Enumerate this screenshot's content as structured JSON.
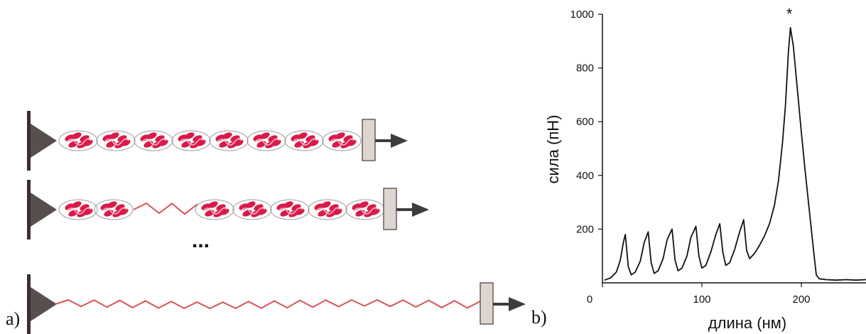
{
  "panels": {
    "a_label": "a)",
    "b_label": "b)"
  },
  "diagram": {
    "rows": [
      {
        "folded_domains": 8,
        "unfolded_domains": 0
      },
      {
        "folded_domains": 7,
        "unfolded_domains": 1
      },
      {
        "folded_domains": 0,
        "unfolded_domains": 8
      }
    ],
    "ellipsis": "...",
    "colors": {
      "domain": "#d81b4a",
      "unfolded_chain": "#d9535a",
      "tip": "#3a2f2f",
      "arrow": "#3d3d3d"
    }
  },
  "chart_data": {
    "type": "line",
    "xlabel": "длина (нм)",
    "ylabel": "сила (пН)",
    "xlim": [
      0,
      265
    ],
    "ylim": [
      0,
      1000
    ],
    "xticks": [
      0,
      100,
      200
    ],
    "yticks": [
      200,
      400,
      600,
      800,
      1000
    ],
    "annotation": {
      "text": "*",
      "x": 188,
      "y": 960
    },
    "series": [
      {
        "color": "#111111",
        "points": [
          [
            2,
            10
          ],
          [
            8,
            18
          ],
          [
            14,
            40
          ],
          [
            18,
            85
          ],
          [
            21,
            150
          ],
          [
            23,
            180
          ],
          [
            26,
            60
          ],
          [
            29,
            30
          ],
          [
            33,
            40
          ],
          [
            38,
            80
          ],
          [
            42,
            150
          ],
          [
            46,
            190
          ],
          [
            49,
            75
          ],
          [
            52,
            35
          ],
          [
            56,
            45
          ],
          [
            61,
            90
          ],
          [
            65,
            160
          ],
          [
            70,
            200
          ],
          [
            73,
            85
          ],
          [
            76,
            45
          ],
          [
            80,
            55
          ],
          [
            85,
            100
          ],
          [
            89,
            170
          ],
          [
            94,
            210
          ],
          [
            97,
            100
          ],
          [
            100,
            55
          ],
          [
            104,
            65
          ],
          [
            109,
            115
          ],
          [
            114,
            180
          ],
          [
            118,
            220
          ],
          [
            121,
            115
          ],
          [
            124,
            65
          ],
          [
            128,
            75
          ],
          [
            133,
            125
          ],
          [
            138,
            190
          ],
          [
            142,
            235
          ],
          [
            145,
            120
          ],
          [
            148,
            90
          ],
          [
            153,
            110
          ],
          [
            158,
            140
          ],
          [
            163,
            175
          ],
          [
            168,
            220
          ],
          [
            173,
            290
          ],
          [
            177,
            380
          ],
          [
            181,
            520
          ],
          [
            184,
            660
          ],
          [
            187,
            860
          ],
          [
            189,
            950
          ],
          [
            192,
            880
          ],
          [
            196,
            720
          ],
          [
            200,
            560
          ],
          [
            204,
            410
          ],
          [
            208,
            270
          ],
          [
            212,
            130
          ],
          [
            215,
            30
          ],
          [
            218,
            15
          ],
          [
            225,
            12
          ],
          [
            235,
            10
          ],
          [
            245,
            12
          ],
          [
            255,
            10
          ],
          [
            265,
            12
          ]
        ]
      }
    ]
  }
}
